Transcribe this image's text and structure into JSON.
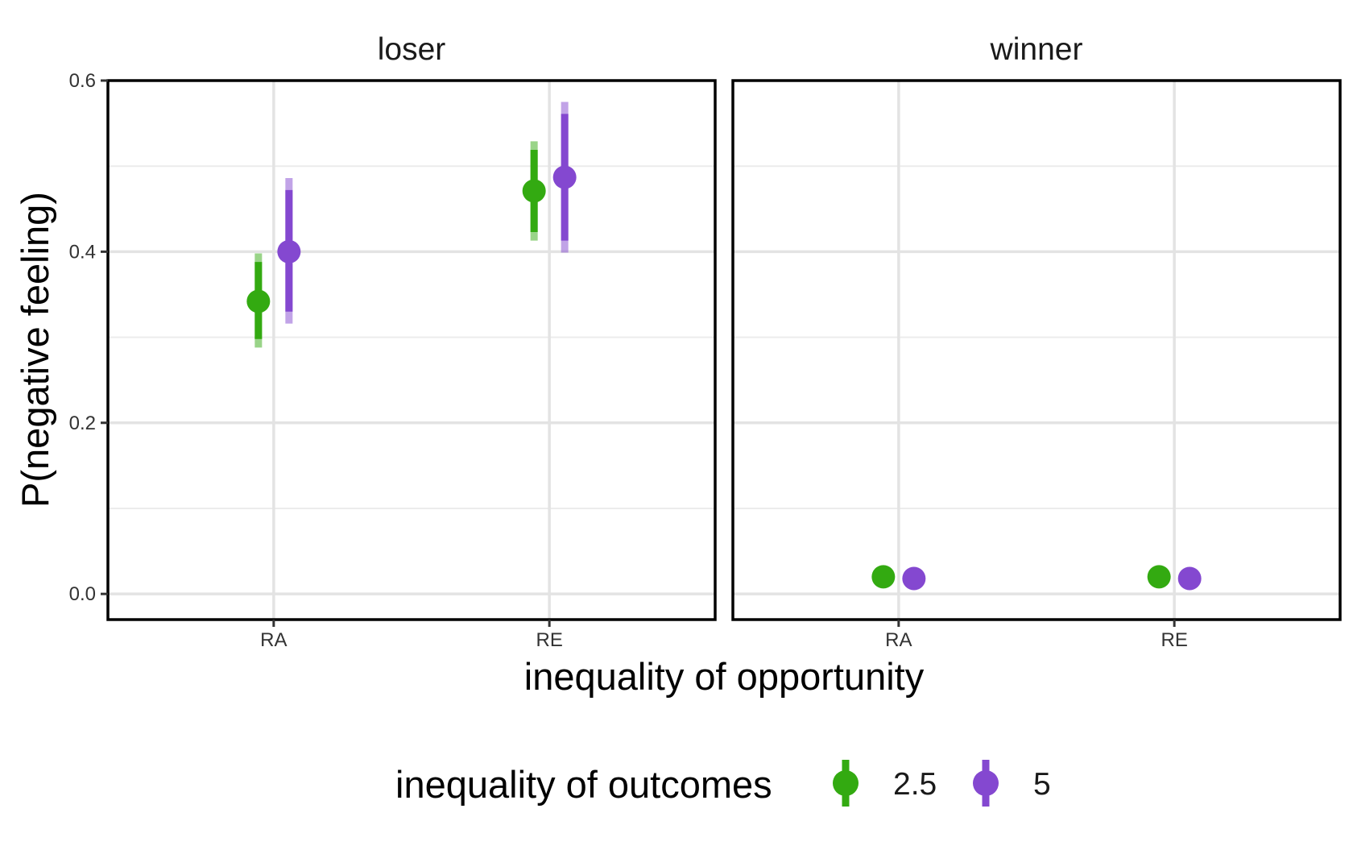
{
  "chart_data": {
    "type": "scatter",
    "subtype": "pointrange-faceted",
    "xlabel": "inequality of opportunity",
    "ylabel": "P(negative feeling)",
    "ylim": [
      -0.03,
      0.6
    ],
    "yticks": [
      "0.0",
      "0.2",
      "0.4",
      "0.6"
    ],
    "ytick_values": [
      0.0,
      0.2,
      0.4,
      0.6
    ],
    "categories": [
      "RA",
      "RE"
    ],
    "grid": true,
    "legend": {
      "title": "inequality of outcomes",
      "placement": "bottom",
      "entries": [
        "2.5",
        "5"
      ]
    },
    "colors": {
      "2.5": "#33aa11",
      "5": "#8448d0"
    },
    "panels": [
      {
        "name": "loser",
        "series": [
          {
            "name": "2.5",
            "values": [
              0.342,
              0.471
            ],
            "inner": [
              [
                0.298,
                0.388
              ],
              [
                0.423,
                0.519
              ]
            ],
            "outer": [
              [
                0.288,
                0.398
              ],
              [
                0.413,
                0.529
              ]
            ]
          },
          {
            "name": "5",
            "values": [
              0.4,
              0.487
            ],
            "inner": [
              [
                0.33,
                0.472
              ],
              [
                0.413,
                0.561
              ]
            ],
            "outer": [
              [
                0.316,
                0.486
              ],
              [
                0.399,
                0.575
              ]
            ]
          }
        ]
      },
      {
        "name": "winner",
        "series": [
          {
            "name": "2.5",
            "values": [
              0.02,
              0.02
            ]
          },
          {
            "name": "5",
            "values": [
              0.018,
              0.018
            ]
          }
        ]
      }
    ]
  }
}
